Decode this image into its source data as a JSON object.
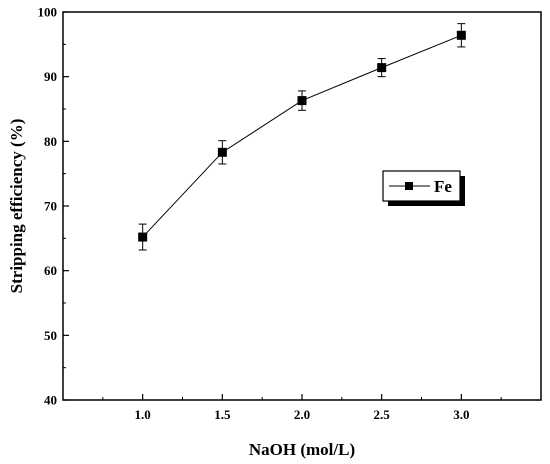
{
  "chart_data": {
    "type": "line",
    "xlabel": "NaOH (mol/L)",
    "ylabel": "Stripping efficiency (%)",
    "xlim": [
      0.5,
      3.5
    ],
    "ylim": [
      40,
      100
    ],
    "x_ticks": [
      "1.0",
      "1.5",
      "2.0",
      "2.5",
      "3.0"
    ],
    "y_ticks": [
      "40",
      "50",
      "60",
      "70",
      "80",
      "90",
      "100"
    ],
    "grid": false,
    "legend_position": "middle-right",
    "series": [
      {
        "name": "Fe",
        "color": "#000000",
        "marker": "square",
        "x": [
          1.0,
          1.5,
          2.0,
          2.5,
          3.0
        ],
        "y": [
          65.2,
          78.3,
          86.3,
          91.4,
          96.4
        ],
        "error": [
          2.0,
          1.8,
          1.5,
          1.4,
          1.8
        ]
      }
    ]
  }
}
